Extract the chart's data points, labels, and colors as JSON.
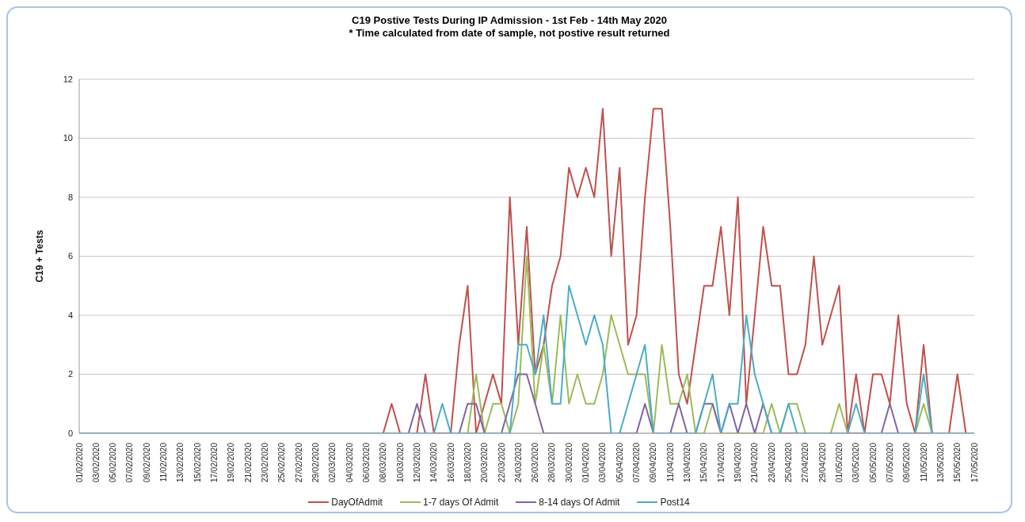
{
  "chart_data": {
    "type": "line",
    "title": "C19 Postive Tests During IP Admission - 1st Feb - 14th May 2020",
    "subtitle": "* Time calculated from date of sample, not postive result returned",
    "ylabel": "C19 + Tests",
    "categories": [
      "01/02/2020",
      null,
      "03/02/2020",
      null,
      "05/02/2020",
      null,
      "07/02/2020",
      null,
      "09/02/2020",
      null,
      "11/02/2020",
      null,
      "13/02/2020",
      null,
      "15/02/2020",
      null,
      "17/02/2020",
      null,
      "19/02/2020",
      null,
      "21/02/2020",
      null,
      "23/02/2020",
      null,
      "25/02/2020",
      null,
      "27/02/2020",
      null,
      "29/02/2020",
      null,
      "02/03/2020",
      null,
      "04/03/2020",
      null,
      "06/03/2020",
      null,
      "08/03/2020",
      null,
      "10/03/2020",
      null,
      "12/03/2020",
      null,
      "14/03/2020",
      null,
      "16/03/2020",
      null,
      "18/03/2020",
      null,
      "20/03/2020",
      null,
      "22/03/2020",
      null,
      "24/03/2020",
      null,
      "26/03/2020",
      null,
      "28/03/2020",
      null,
      "30/03/2020",
      null,
      "01/04/2020",
      null,
      "03/04/2020",
      null,
      "05/04/2020",
      null,
      "07/04/2020",
      null,
      "09/04/2020",
      null,
      "11/04/2020",
      null,
      "13/04/2020",
      null,
      "15/04/2020",
      null,
      "17/04/2020",
      null,
      "19/04/2020",
      null,
      "21/04/2020",
      null,
      "23/04/2020",
      null,
      "25/04/2020",
      null,
      "27/04/2020",
      null,
      "29/04/2020",
      null,
      "01/05/2020",
      null,
      "03/05/2020",
      null,
      "05/05/2020",
      null,
      "07/05/2020",
      null,
      "09/05/2020",
      null,
      "11/05/2020",
      null,
      "13/05/2020",
      null,
      "15/05/2020",
      null,
      "17/05/2020"
    ],
    "series": [
      {
        "name": "DayOfAdmit",
        "color": "#c0504d",
        "values": [
          null,
          null,
          null,
          null,
          null,
          null,
          null,
          null,
          null,
          null,
          null,
          null,
          null,
          null,
          null,
          null,
          null,
          null,
          null,
          null,
          null,
          null,
          null,
          null,
          null,
          null,
          null,
          null,
          null,
          null,
          null,
          null,
          null,
          null,
          null,
          null,
          0,
          1,
          0,
          null,
          0,
          2,
          0,
          null,
          0,
          3,
          5,
          0,
          1,
          2,
          1,
          8,
          3,
          7,
          2,
          3,
          5,
          6,
          9,
          8,
          9,
          8,
          11,
          6,
          9,
          3,
          4,
          8,
          11,
          11,
          7,
          2,
          1,
          3,
          5,
          5,
          7,
          4,
          8,
          1,
          4,
          7,
          5,
          5,
          2,
          2,
          3,
          6,
          3,
          4,
          5,
          0,
          2,
          0,
          2,
          2,
          1,
          4,
          1,
          0,
          3,
          0,
          null,
          0,
          2,
          0,
          null
        ]
      },
      {
        "name": "1-7 days Of Admit",
        "color": "#9bbb59",
        "values": [
          null,
          null,
          null,
          null,
          null,
          null,
          null,
          null,
          null,
          null,
          null,
          null,
          null,
          null,
          null,
          null,
          null,
          null,
          null,
          null,
          null,
          null,
          null,
          null,
          null,
          null,
          null,
          null,
          null,
          null,
          null,
          null,
          null,
          null,
          null,
          null,
          null,
          null,
          null,
          null,
          null,
          null,
          null,
          null,
          null,
          null,
          0,
          2,
          0,
          1,
          1,
          0,
          1,
          6,
          1,
          3,
          1,
          4,
          1,
          2,
          1,
          1,
          2,
          4,
          3,
          2,
          2,
          2,
          0,
          3,
          1,
          1,
          2,
          0,
          0,
          1,
          0,
          0,
          0,
          0,
          0,
          0,
          1,
          0,
          1,
          1,
          0,
          null,
          null,
          0,
          1,
          0,
          null,
          null,
          null,
          null,
          null,
          null,
          null,
          0,
          1,
          0,
          null,
          null,
          null,
          null,
          null
        ]
      },
      {
        "name": "8-14 days Of Admit",
        "color": "#8064a2",
        "values": [
          null,
          null,
          null,
          null,
          null,
          null,
          null,
          null,
          null,
          null,
          null,
          null,
          null,
          null,
          null,
          null,
          null,
          null,
          null,
          null,
          null,
          null,
          null,
          null,
          null,
          null,
          null,
          null,
          null,
          null,
          null,
          null,
          null,
          null,
          null,
          null,
          null,
          null,
          null,
          0,
          1,
          0,
          0,
          0,
          0,
          0,
          1,
          1,
          0,
          null,
          0,
          1,
          2,
          2,
          1,
          0,
          0,
          0,
          0,
          0,
          0,
          0,
          0,
          0,
          0,
          0,
          0,
          1,
          0,
          null,
          0,
          1,
          0,
          0,
          1,
          1,
          0,
          1,
          0,
          1,
          0,
          1,
          0,
          0,
          0,
          0,
          null,
          null,
          null,
          null,
          null,
          0,
          0,
          0,
          null,
          0,
          1,
          0,
          null,
          0,
          0,
          0,
          null,
          null,
          null,
          null,
          null
        ]
      },
      {
        "name": "Post14",
        "color": "#4bacc6",
        "values": [
          0,
          0,
          0,
          0,
          0,
          0,
          0,
          0,
          0,
          0,
          0,
          0,
          0,
          0,
          0,
          0,
          0,
          0,
          0,
          0,
          0,
          0,
          0,
          0,
          0,
          0,
          0,
          0,
          0,
          0,
          0,
          0,
          0,
          0,
          0,
          0,
          0,
          0,
          0,
          0,
          0,
          0,
          0,
          1,
          0,
          0,
          0,
          0,
          0,
          0,
          0,
          0,
          3,
          3,
          2,
          4,
          1,
          1,
          5,
          4,
          3,
          4,
          3,
          0,
          0,
          1,
          2,
          3,
          0,
          0,
          0,
          0,
          0,
          0,
          1,
          2,
          0,
          1,
          1,
          4,
          2,
          1,
          0,
          0,
          1,
          0,
          0,
          0,
          0,
          0,
          0,
          0,
          1,
          0,
          0,
          0,
          0,
          0,
          0,
          0,
          2,
          0,
          0,
          0,
          0,
          0,
          0
        ]
      }
    ],
    "ylim": [
      0,
      12
    ],
    "yticks": [
      0,
      2,
      4,
      6,
      8,
      10,
      12
    ],
    "grid": "y",
    "legend": "bottom",
    "marker": "none",
    "line_style": "solid"
  }
}
